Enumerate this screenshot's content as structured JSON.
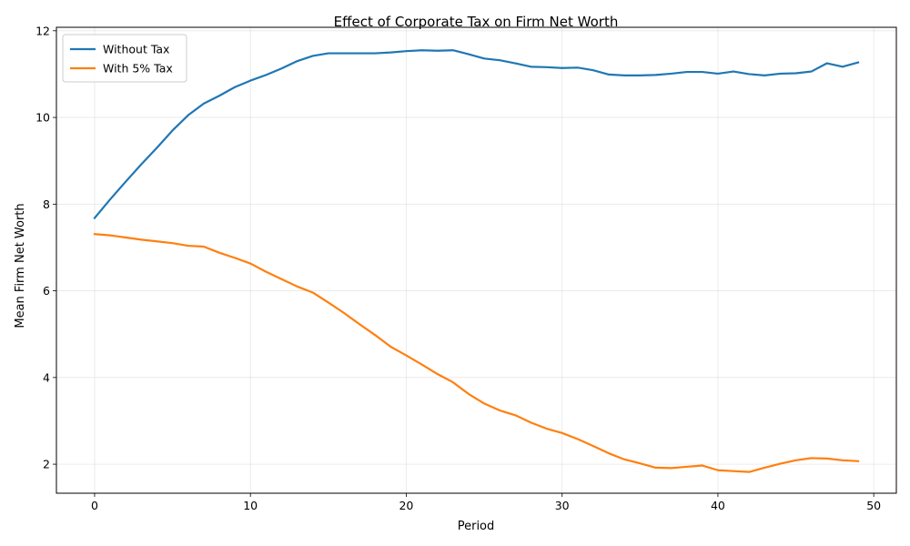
{
  "chart_data": {
    "type": "line",
    "title": "Effect of Corporate Tax on Firm Net Worth",
    "xlabel": "Period",
    "ylabel": "Mean Firm Net Worth",
    "xlim": [
      -2.45,
      51.45
    ],
    "ylim": [
      1.33,
      12.08
    ],
    "xticks": [
      0,
      10,
      20,
      30,
      40,
      50
    ],
    "yticks": [
      2,
      4,
      6,
      8,
      10,
      12
    ],
    "grid": true,
    "legend_position": "top-left",
    "x": [
      0,
      1,
      2,
      3,
      4,
      5,
      6,
      7,
      8,
      9,
      10,
      11,
      12,
      13,
      14,
      15,
      16,
      17,
      18,
      19,
      20,
      21,
      22,
      23,
      24,
      25,
      26,
      27,
      28,
      29,
      30,
      31,
      32,
      33,
      34,
      35,
      36,
      37,
      38,
      39,
      40,
      41,
      42,
      43,
      44,
      45,
      46,
      47,
      48,
      49
    ],
    "series": [
      {
        "name": "Without Tax",
        "color": "#1f77b4",
        "values": [
          7.68,
          8.11,
          8.52,
          8.92,
          9.3,
          9.7,
          10.05,
          10.32,
          10.5,
          10.7,
          10.85,
          10.98,
          11.13,
          11.3,
          11.42,
          11.48,
          11.48,
          11.48,
          11.48,
          11.5,
          11.53,
          11.55,
          11.54,
          11.55,
          11.46,
          11.36,
          11.32,
          11.25,
          11.17,
          11.16,
          11.14,
          11.15,
          11.09,
          10.99,
          10.97,
          10.97,
          10.98,
          11.01,
          11.05,
          11.05,
          11.01,
          11.06,
          11.0,
          10.97,
          11.01,
          11.02,
          11.06,
          11.25,
          11.17,
          11.27
        ]
      },
      {
        "name": "With 5% Tax",
        "color": "#ff7f0e",
        "values": [
          7.31,
          7.28,
          7.23,
          7.18,
          7.14,
          7.1,
          7.04,
          7.02,
          6.88,
          6.76,
          6.63,
          6.44,
          6.27,
          6.1,
          5.96,
          5.73,
          5.49,
          5.23,
          4.98,
          4.71,
          4.51,
          4.3,
          4.08,
          3.89,
          3.62,
          3.4,
          3.24,
          3.13,
          2.96,
          2.82,
          2.72,
          2.58,
          2.42,
          2.25,
          2.11,
          2.02,
          1.92,
          1.91,
          1.94,
          1.97,
          1.86,
          1.84,
          1.82,
          1.92,
          2.01,
          2.09,
          2.14,
          2.13,
          2.09,
          2.07
        ]
      }
    ]
  }
}
